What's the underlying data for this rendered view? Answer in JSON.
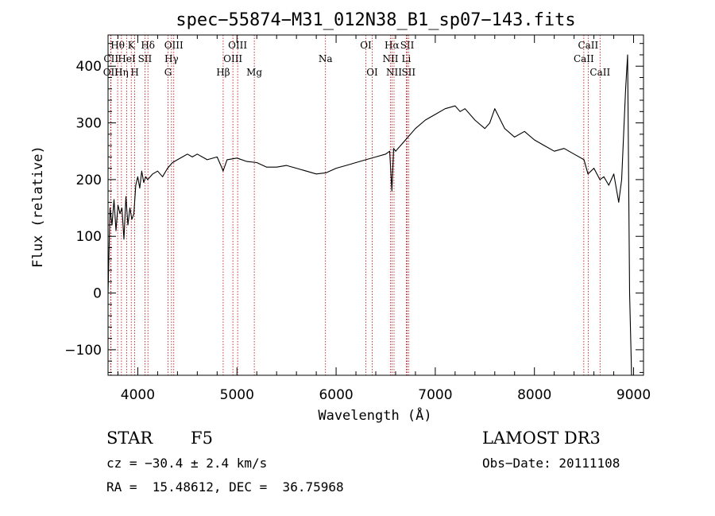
{
  "chart_data": {
    "type": "line",
    "title": "spec−55874−M31_012N38_B1_sp07−143.fits",
    "xlabel": "Wavelength (Å)",
    "ylabel": "Flux (relative)",
    "xlim": [
      3700,
      9100
    ],
    "ylim": [
      -145,
      455
    ],
    "xticks": [
      4000,
      5000,
      6000,
      7000,
      8000,
      9000
    ],
    "yticks": [
      -100,
      0,
      100,
      200,
      300,
      400
    ],
    "xtick_labels": [
      "4000",
      "5000",
      "6000",
      "7000",
      "8000",
      "9000"
    ],
    "ytick_labels": [
      "−100",
      "0",
      "100",
      "200",
      "300",
      "400"
    ],
    "series": [
      {
        "name": "flux",
        "x": [
          3700,
          3720,
          3740,
          3760,
          3780,
          3800,
          3820,
          3840,
          3860,
          3880,
          3900,
          3920,
          3940,
          3960,
          3980,
          4000,
          4020,
          4040,
          4060,
          4080,
          4100,
          4150,
          4200,
          4250,
          4300,
          4350,
          4400,
          4450,
          4500,
          4550,
          4600,
          4700,
          4800,
          4850,
          4860,
          4900,
          5000,
          5100,
          5200,
          5300,
          5400,
          5500,
          5600,
          5700,
          5800,
          5900,
          6000,
          6100,
          6200,
          6300,
          6400,
          6500,
          6540,
          6563,
          6580,
          6600,
          6700,
          6800,
          6900,
          7000,
          7100,
          7200,
          7250,
          7300,
          7400,
          7500,
          7550,
          7600,
          7700,
          7800,
          7900,
          8000,
          8100,
          8200,
          8300,
          8400,
          8500,
          8540,
          8600,
          8660,
          8700,
          8750,
          8800,
          8850,
          8880,
          8900,
          8920,
          8940,
          8960,
          8980,
          9000,
          9020
        ],
        "y": [
          0,
          150,
          120,
          165,
          110,
          155,
          140,
          150,
          95,
          170,
          120,
          150,
          130,
          140,
          190,
          205,
          185,
          215,
          195,
          205,
          200,
          210,
          215,
          205,
          220,
          230,
          235,
          240,
          245,
          240,
          245,
          235,
          240,
          220,
          215,
          235,
          238,
          232,
          230,
          222,
          222,
          225,
          220,
          215,
          210,
          212,
          220,
          225,
          230,
          235,
          240,
          245,
          250,
          180,
          255,
          250,
          270,
          290,
          305,
          315,
          325,
          330,
          320,
          325,
          305,
          290,
          300,
          325,
          290,
          275,
          285,
          270,
          260,
          250,
          255,
          245,
          235,
          210,
          220,
          200,
          205,
          190,
          210,
          160,
          200,
          280,
          360,
          420,
          0,
          -145,
          -145,
          -145
        ]
      }
    ],
    "line_colors": {
      "spectrum": "#000000",
      "markers": "#c00000"
    },
    "spectral_lines": [
      {
        "label": "Hθ",
        "x": 3797,
        "row": 0
      },
      {
        "label": "CII",
        "x": 3730,
        "row": 1
      },
      {
        "label": "OII",
        "x": 3727,
        "row": 2
      },
      {
        "label": "K",
        "x": 3934,
        "row": 0
      },
      {
        "label": "H",
        "x": 3969,
        "row": 2
      },
      {
        "label": "Hη",
        "x": 3835,
        "row": 2
      },
      {
        "label": "HeI",
        "x": 3889,
        "row": 1
      },
      {
        "label": "SII",
        "x": 4072,
        "row": 1
      },
      {
        "label": "Hδ",
        "x": 4102,
        "row": 0
      },
      {
        "label": "OIII",
        "x": 4363,
        "row": 0
      },
      {
        "label": "Hγ",
        "x": 4340,
        "row": 1
      },
      {
        "label": "G",
        "x": 4305,
        "row": 2
      },
      {
        "label": "Hβ",
        "x": 4861,
        "row": 2
      },
      {
        "label": "OIII",
        "x": 5007,
        "row": 0
      },
      {
        "label": "OIII",
        "x": 4959,
        "row": 1
      },
      {
        "label": "Mg",
        "x": 5175,
        "row": 2
      },
      {
        "label": "Na",
        "x": 5893,
        "row": 1
      },
      {
        "label": "OI",
        "x": 6300,
        "row": 0
      },
      {
        "label": "OI",
        "x": 6364,
        "row": 2
      },
      {
        "label": "Hα",
        "x": 6563,
        "row": 0
      },
      {
        "label": "NII",
        "x": 6548,
        "row": 1
      },
      {
        "label": "NII",
        "x": 6584,
        "row": 2
      },
      {
        "label": "SII",
        "x": 6717,
        "row": 0
      },
      {
        "label": "Li",
        "x": 6708,
        "row": 1
      },
      {
        "label": "SII",
        "x": 6731,
        "row": 2
      },
      {
        "label": "CaII",
        "x": 8542,
        "row": 0
      },
      {
        "label": "CaII",
        "x": 8498,
        "row": 1
      },
      {
        "label": "CaII",
        "x": 8662,
        "row": 2
      }
    ]
  },
  "info": {
    "class": "STAR",
    "subclass": "F5",
    "survey": "LAMOST DR3",
    "cz": "cz = −30.4 ± 2.4 km/s",
    "obs_date": "Obs−Date: 20111108",
    "coords": "RA =  15.48612, DEC =  36.75968"
  }
}
